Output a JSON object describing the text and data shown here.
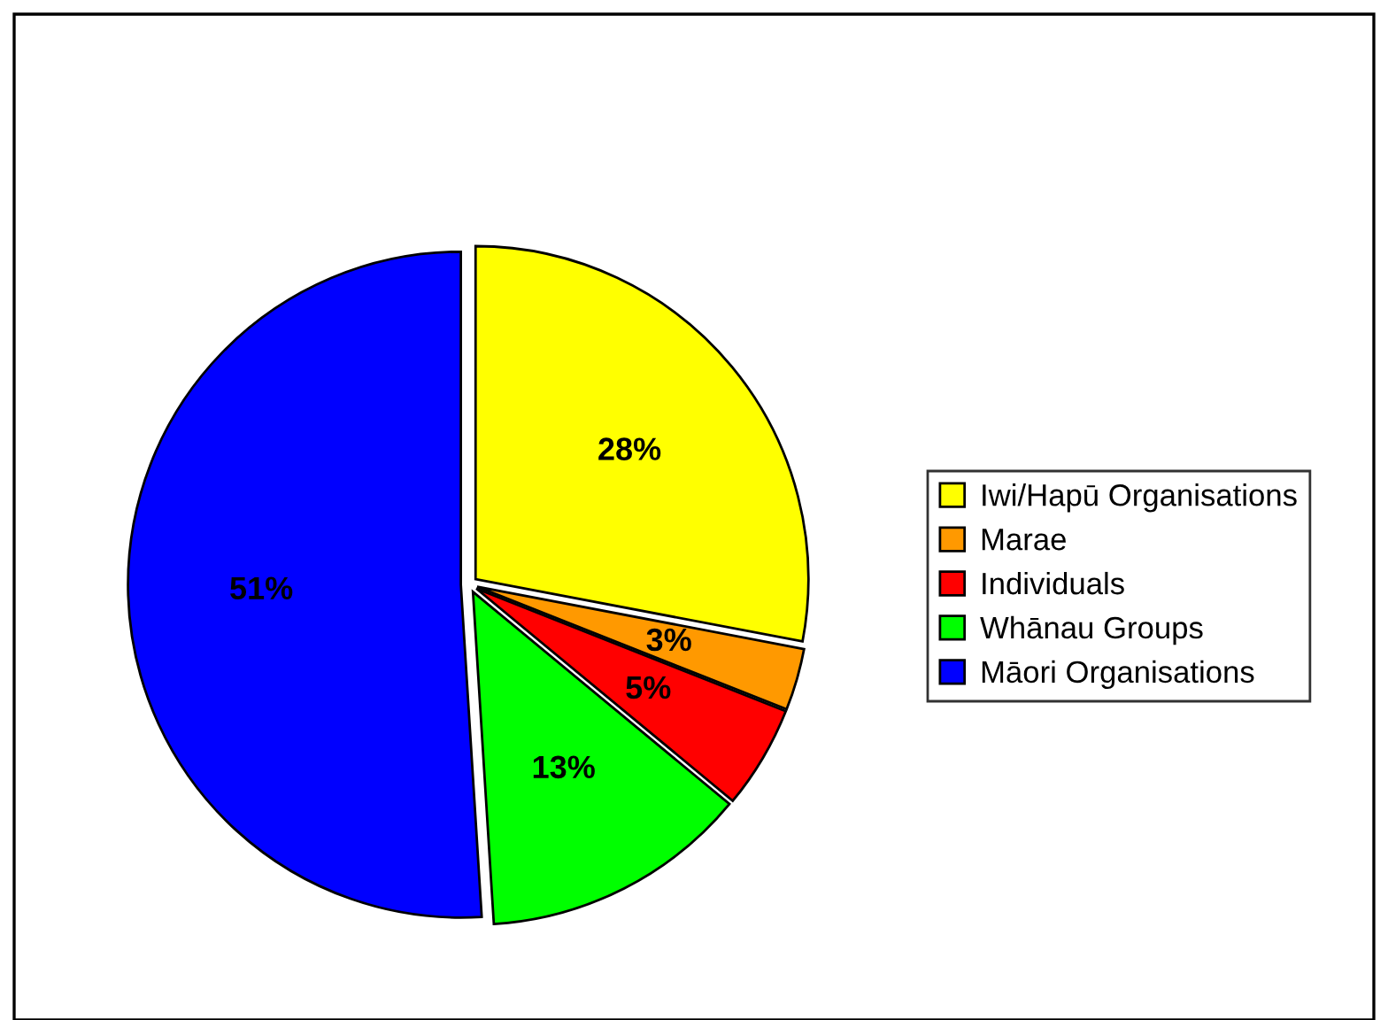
{
  "chart_data": {
    "type": "pie",
    "categories": [
      "Iwi/Hapū Organisations",
      "Marae",
      "Individuals",
      "Whānau Groups",
      "Māori Organisations"
    ],
    "values": [
      28,
      3,
      5,
      13,
      51
    ],
    "colors": [
      "#ffff00",
      "#ff9900",
      "#ff0000",
      "#00ff00",
      "#0000ff"
    ],
    "value_labels": [
      "28%",
      "3%",
      "5%",
      "13%",
      "51%"
    ],
    "legend": "right"
  }
}
